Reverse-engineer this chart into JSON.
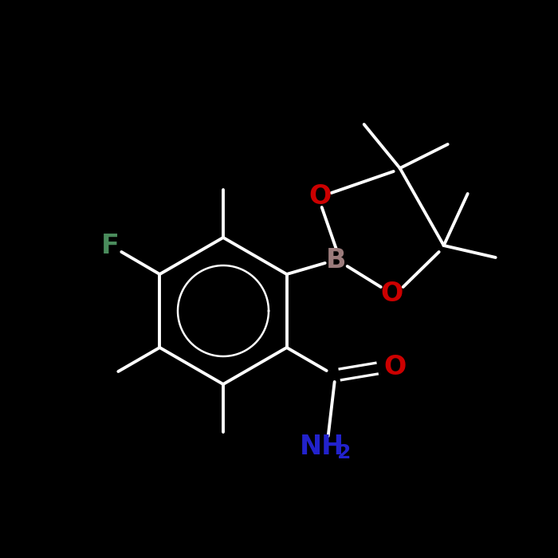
{
  "bg_color": "#000000",
  "bond_color": "#ffffff",
  "bond_width": 2.8,
  "atom_colors": {
    "O": "#cc0000",
    "B": "#9b7b7b",
    "F": "#4a8c5c",
    "N": "#2222cc"
  },
  "atom_fontsizes": {
    "O": 24,
    "B": 24,
    "F": 24,
    "N": 24,
    "sub": 18
  },
  "figsize": [
    7.0,
    7.0
  ],
  "dpi": 100
}
